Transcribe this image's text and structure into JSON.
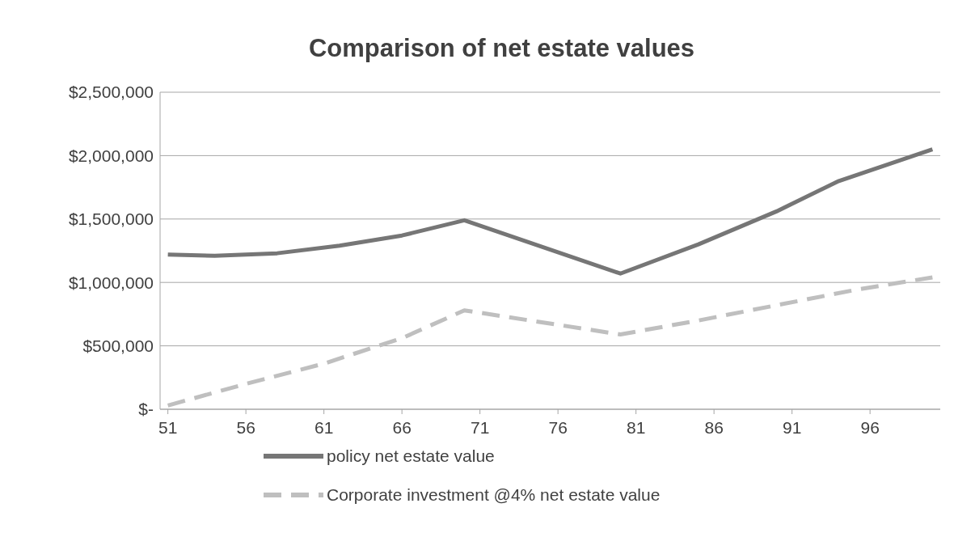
{
  "chart_data": {
    "type": "line",
    "title": "Comparison of net estate values",
    "x": [
      51,
      54,
      58,
      62,
      66,
      70,
      80,
      85,
      90,
      94,
      100
    ],
    "series": [
      {
        "name": "policy net estate value",
        "color": "#767676",
        "line_style": "solid",
        "values": [
          1220000,
          1210000,
          1230000,
          1290000,
          1370000,
          1490000,
          1070000,
          1300000,
          1560000,
          1800000,
          2050000
        ]
      },
      {
        "name": "Corporate investment @4% net estate value",
        "color": "#bfbfbf",
        "line_style": "dashed",
        "x": [
          51,
          56,
          61,
          66,
          70,
          80,
          85,
          90,
          95,
          100
        ],
        "values": [
          30000,
          200000,
          360000,
          560000,
          780000,
          590000,
          700000,
          820000,
          940000,
          1040000
        ]
      }
    ],
    "xlim": [
      50.5,
      100.5
    ],
    "xticks": [
      51,
      56,
      61,
      66,
      71,
      76,
      81,
      86,
      91,
      96
    ],
    "ylim": [
      0,
      2500000
    ],
    "yticks": [
      {
        "value": 0,
        "label": "$-"
      },
      {
        "value": 500000,
        "label": "$500,000"
      },
      {
        "value": 1000000,
        "label": "$1,000,000"
      },
      {
        "value": 1500000,
        "label": "$1,500,000"
      },
      {
        "value": 2000000,
        "label": "$2,000,000"
      },
      {
        "value": 2500000,
        "label": "$2,500,000"
      }
    ],
    "grid": "y",
    "legend": "bottom",
    "marker": "none"
  }
}
